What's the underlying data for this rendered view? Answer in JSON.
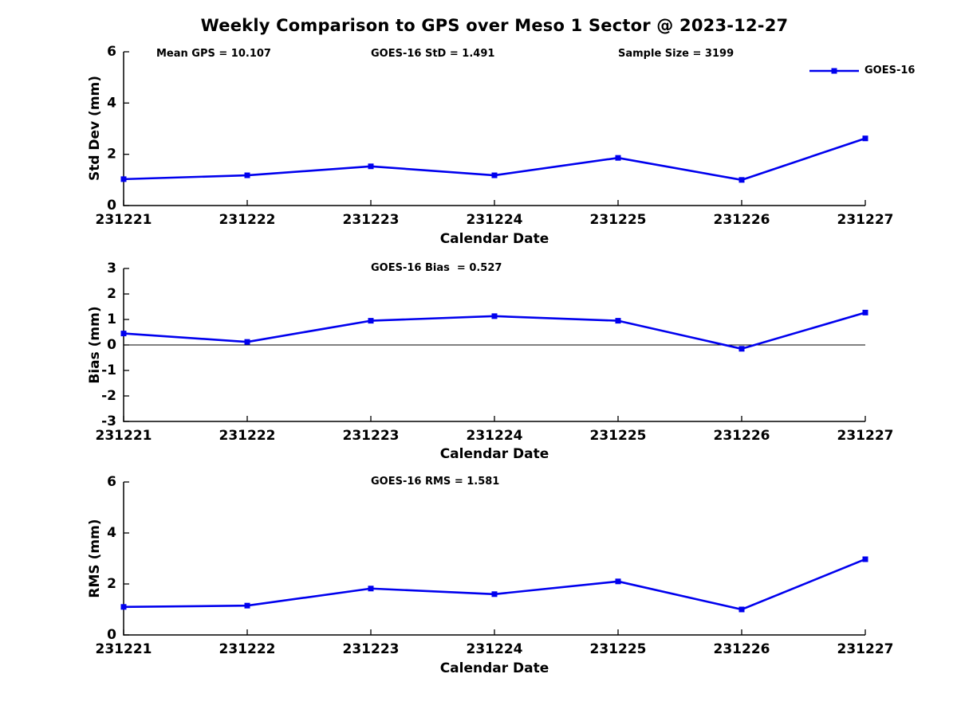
{
  "title": "Weekly Comparison to GPS over Meso 1 Sector @ 2023-12-27",
  "legend": {
    "label": "GOES-16"
  },
  "colors": {
    "line": "#0000EE",
    "axis": "#000000",
    "text": "#000000"
  },
  "chart_data": [
    {
      "type": "line",
      "annotations": [
        "Mean GPS = 10.107",
        "GOES-16 StD = 1.491",
        "Sample Size = 3199"
      ],
      "categories": [
        "231221",
        "231222",
        "231223",
        "231224",
        "231225",
        "231226",
        "231227"
      ],
      "series": [
        {
          "name": "GOES-16",
          "values": [
            1.03,
            1.18,
            1.53,
            1.18,
            1.86,
            1.0,
            2.62
          ]
        }
      ],
      "xlabel": "Calendar Date",
      "ylabel": "Std Dev (mm)",
      "ylim": [
        0,
        6
      ],
      "yticks": [
        0,
        2,
        4,
        6
      ],
      "zero_line": false,
      "legend_position": "upper right",
      "grid": false,
      "marker": "square"
    },
    {
      "type": "line",
      "annotations": [
        "GOES-16 Bias  = 0.527"
      ],
      "categories": [
        "231221",
        "231222",
        "231223",
        "231224",
        "231225",
        "231226",
        "231227"
      ],
      "series": [
        {
          "name": "GOES-16",
          "values": [
            0.45,
            0.12,
            0.95,
            1.13,
            0.95,
            -0.15,
            1.27
          ]
        }
      ],
      "xlabel": "Calendar Date",
      "ylabel": "Bias (mm)",
      "ylim": [
        -3,
        3
      ],
      "yticks": [
        -3,
        -2,
        -1,
        0,
        1,
        2,
        3
      ],
      "zero_line": true,
      "grid": false,
      "marker": "square"
    },
    {
      "type": "line",
      "annotations": [
        "GOES-16 RMS = 1.581"
      ],
      "categories": [
        "231221",
        "231222",
        "231223",
        "231224",
        "231225",
        "231226",
        "231227"
      ],
      "series": [
        {
          "name": "GOES-16",
          "values": [
            1.1,
            1.15,
            1.82,
            1.6,
            2.1,
            1.0,
            2.97
          ]
        }
      ],
      "xlabel": "Calendar Date",
      "ylabel": "RMS (mm)",
      "ylim": [
        0,
        6
      ],
      "yticks": [
        0,
        2,
        4,
        6
      ],
      "zero_line": false,
      "grid": false,
      "marker": "square"
    }
  ]
}
